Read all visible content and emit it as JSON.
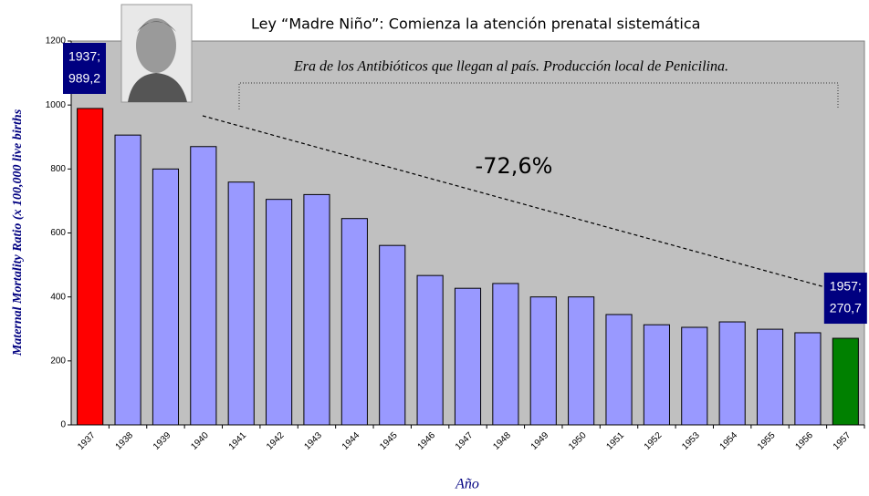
{
  "chart_data": {
    "type": "bar",
    "title": "Ley “Madre Niño”: Comienza la atención prenatal sistemática",
    "era_annotation": "Era de los Antibióticos que llegan al país. Producción local de Penicilina.",
    "change_annotation": "-72,6%",
    "y_label": "Maternal Mortality Ratio (x 100,000 live births",
    "x_label": "Año",
    "categories": [
      "1937",
      "1938",
      "1939",
      "1940",
      "1941",
      "1942",
      "1943",
      "1944",
      "1945",
      "1946",
      "1947",
      "1948",
      "1949",
      "1950",
      "1951",
      "1952",
      "1953",
      "1954",
      "1955",
      "1956",
      "1957"
    ],
    "values": [
      989.2,
      906,
      800,
      870,
      759,
      705,
      720,
      645,
      561,
      467,
      427,
      442,
      400,
      400,
      345,
      313,
      305,
      322,
      299,
      288,
      270.7
    ],
    "value_labels": [
      "989,2",
      null,
      null,
      null,
      null,
      null,
      null,
      null,
      null,
      null,
      null,
      null,
      null,
      null,
      null,
      null,
      null,
      null,
      null,
      null,
      "270,7"
    ],
    "callout_years": [
      "1937;",
      null,
      null,
      null,
      null,
      null,
      null,
      null,
      null,
      null,
      null,
      null,
      null,
      null,
      null,
      null,
      null,
      null,
      null,
      null,
      "1957;"
    ],
    "colors": [
      "#ff0000",
      "#9999ff",
      "#9999ff",
      "#9999ff",
      "#9999ff",
      "#9999ff",
      "#9999ff",
      "#9999ff",
      "#9999ff",
      "#9999ff",
      "#9999ff",
      "#9999ff",
      "#9999ff",
      "#9999ff",
      "#9999ff",
      "#9999ff",
      "#9999ff",
      "#9999ff",
      "#9999ff",
      "#9999ff",
      "#008000"
    ],
    "ylim": [
      0,
      1200
    ],
    "yticks": [
      0,
      200,
      400,
      600,
      800,
      1000,
      1200
    ]
  }
}
